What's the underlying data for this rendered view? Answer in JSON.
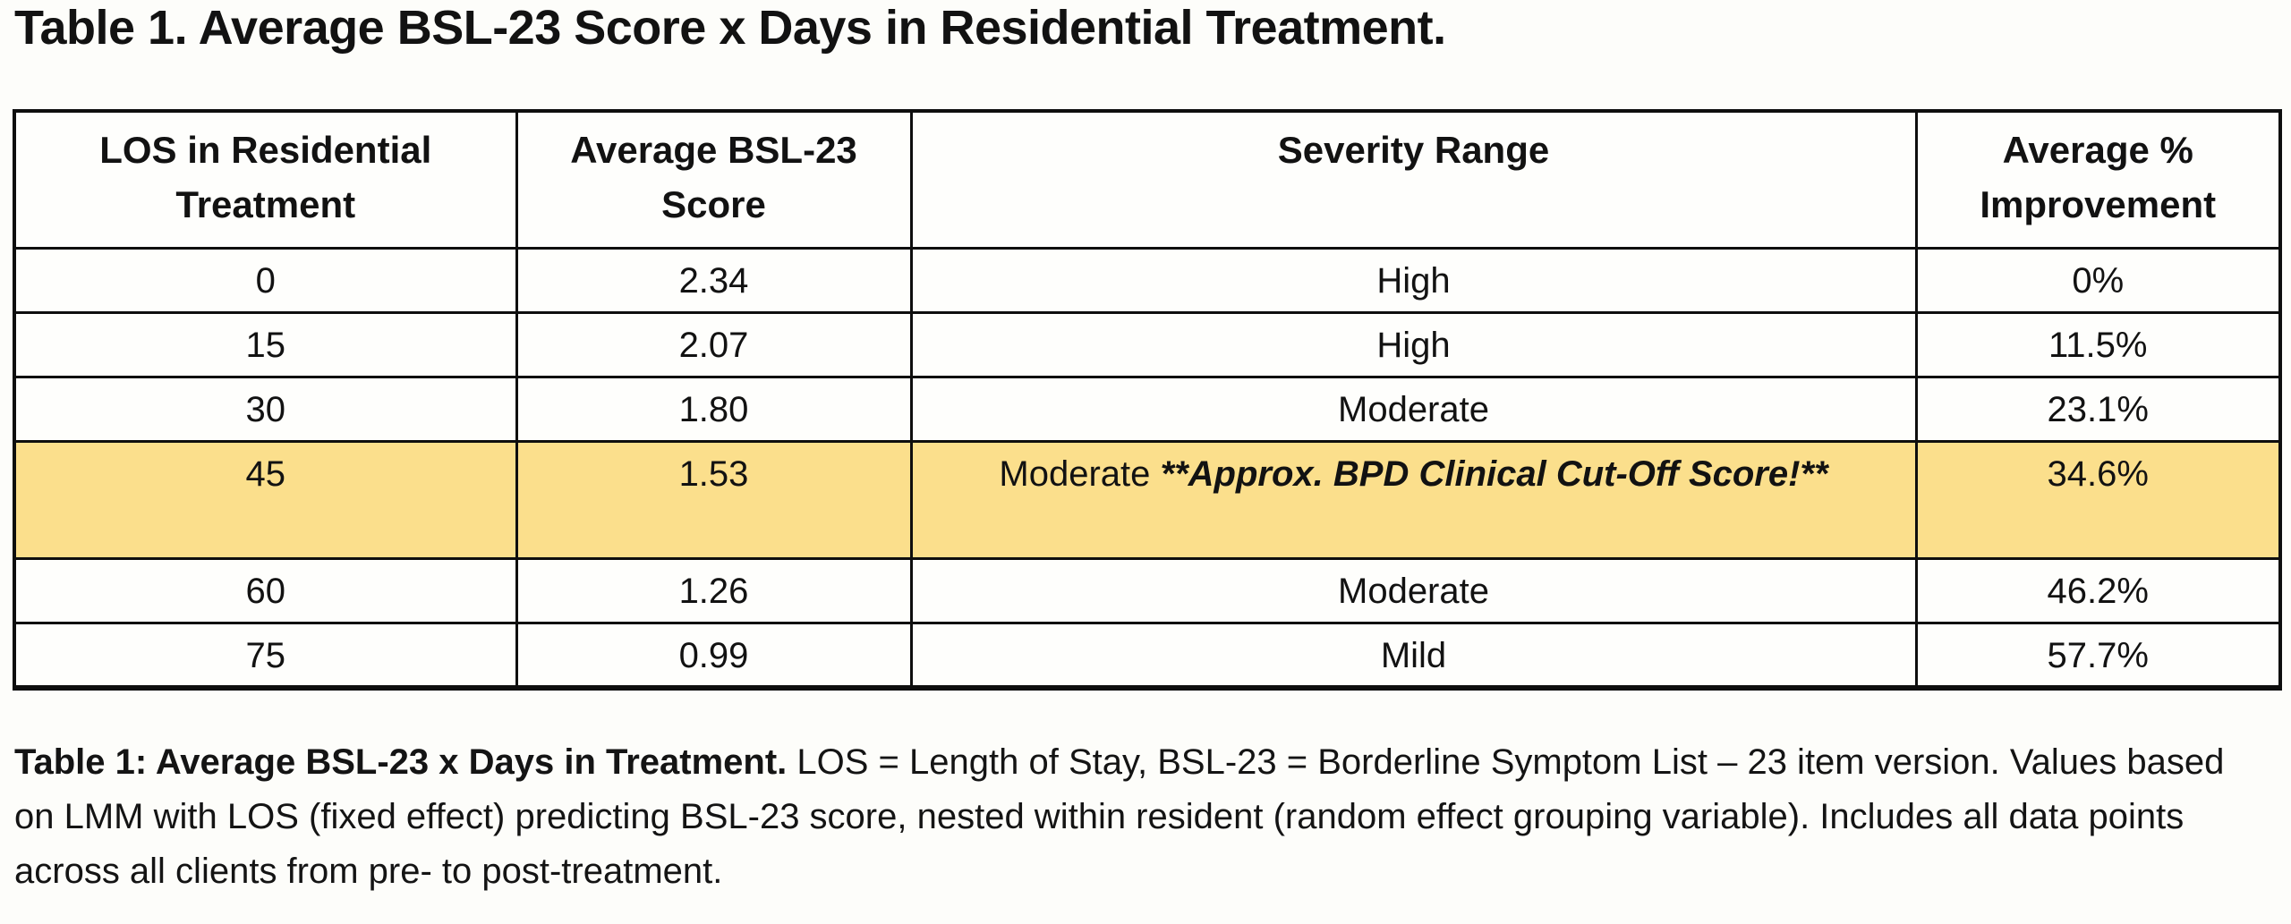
{
  "page": {
    "title": "Table 1. Average BSL-23 Score x Days in Residential Treatment."
  },
  "table": {
    "highlight_color": "#fbdf8c",
    "columns": [
      "LOS in Residential\nTreatment",
      "Average BSL-23\nScore",
      "Severity Range",
      "Average %\nImprovement"
    ],
    "rows": [
      {
        "los": "0",
        "score": "2.34",
        "severity": "High",
        "severity_note": "",
        "improvement": "0%",
        "highlighted": false
      },
      {
        "los": "15",
        "score": "2.07",
        "severity": "High",
        "severity_note": "",
        "improvement": "11.5%",
        "highlighted": false
      },
      {
        "los": "30",
        "score": "1.80",
        "severity": "Moderate",
        "severity_note": "",
        "improvement": "23.1%",
        "highlighted": false
      },
      {
        "los": "45",
        "score": "1.53",
        "severity": "Moderate",
        "severity_note": "**Approx. BPD Clinical Cut-Off Score!**",
        "improvement": "34.6%",
        "highlighted": true
      },
      {
        "los": "60",
        "score": "1.26",
        "severity": "Moderate",
        "severity_note": "",
        "improvement": "46.2%",
        "highlighted": false
      },
      {
        "los": "75",
        "score": "0.99",
        "severity": "Mild",
        "severity_note": "",
        "improvement": "57.7%",
        "highlighted": false
      }
    ]
  },
  "caption": {
    "bold": "Table 1: Average BSL-23 x Days in Treatment.",
    "text": " LOS = Length of Stay, BSL-23 = Borderline Symptom List – 23 item version. Values based on LMM with LOS (fixed effect) predicting BSL-23 score, nested within resident (random effect grouping variable). Includes all data points across all clients from pre- to post-treatment."
  }
}
